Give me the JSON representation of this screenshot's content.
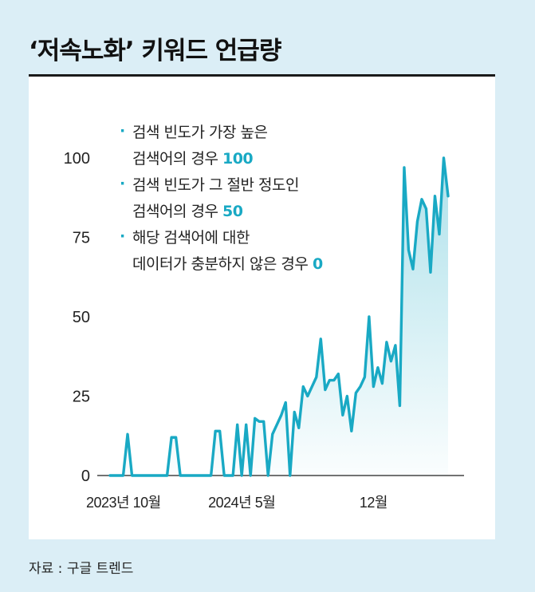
{
  "title": "‘저속노화’ 키워드 언급량",
  "source": "자료 : 구글 트렌드",
  "colors": {
    "accent": "#19a9c4",
    "background": "#dbeef6",
    "panel": "#ffffff"
  },
  "legend": {
    "items": [
      {
        "bullet": "·",
        "line1": "검색 빈도가 가장 높은",
        "line2": "검색어의 경우",
        "value": "100"
      },
      {
        "bullet": "·",
        "line1": "검색 빈도가 그 절반 정도인",
        "line2": "검색어의 경우",
        "value": "50"
      },
      {
        "bullet": "·",
        "line1": "해당 검색어에 대한",
        "line2": "데이터가 충분하지 않은 경우",
        "value": "0"
      }
    ]
  },
  "chart_data": {
    "type": "area",
    "title": "‘저속노화’ 키워드 언급량",
    "xlabel": "",
    "ylabel": "",
    "ylim": [
      0,
      100
    ],
    "yticks": [
      0,
      25,
      50,
      75,
      100
    ],
    "x_tick_labels": [
      {
        "label": "2023년 10월",
        "index": 0
      },
      {
        "label": "2024년 5월",
        "index": 30
      },
      {
        "label": "12월",
        "index": 60
      }
    ],
    "grid": false,
    "series": [
      {
        "values": [
          0,
          0,
          0,
          0,
          13,
          0,
          0,
          0,
          0,
          0,
          0,
          0,
          0,
          0,
          12,
          12,
          0,
          0,
          0,
          0,
          0,
          0,
          0,
          0,
          14,
          14,
          0,
          0,
          0,
          16,
          0,
          16,
          0,
          18,
          17,
          17,
          0,
          13,
          16,
          19,
          23,
          0,
          20,
          15,
          28,
          25,
          28,
          31,
          43,
          27,
          30,
          30,
          32,
          19,
          25,
          14,
          26,
          28,
          31,
          50,
          28,
          34,
          29,
          42,
          36,
          41,
          22,
          97,
          71,
          65,
          80,
          87,
          84,
          64,
          88,
          76,
          100,
          88
        ]
      }
    ]
  }
}
